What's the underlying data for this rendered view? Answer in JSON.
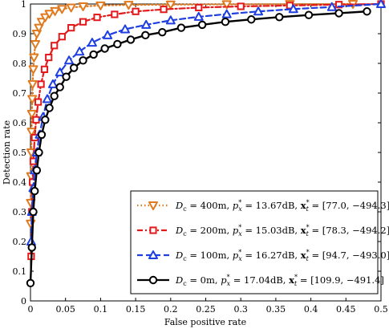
{
  "chart_data": {
    "type": "line",
    "title": "",
    "xlabel": "False positive rate",
    "ylabel": "Detection rate",
    "xlim": [
      0,
      0.5
    ],
    "ylim": [
      0,
      1
    ],
    "x_ticks": [
      "0",
      "0.05",
      "0.1",
      "0.15",
      "0.2",
      "0.25",
      "0.3",
      "0.35",
      "0.4",
      "0.45",
      "0.5"
    ],
    "y_ticks": [
      "0",
      "0.1",
      "0.2",
      "0.3",
      "0.4",
      "0.5",
      "0.6",
      "0.7",
      "0.8",
      "0.9",
      "1"
    ],
    "grid": false,
    "legend_position": "bottom-right",
    "series": [
      {
        "name": "D_c = 400m, p_x* = 13.67dB, x_t* = [77.0, -494.3]",
        "legend": {
          "pre": "D",
          "sub1": "c",
          "mid1": " = 400m, ",
          "p": "p",
          "psup": "*",
          "psub": "x",
          "mid2": " = 13.67dB, ",
          "x": "x",
          "xsup": "*",
          "xsub": "t",
          "post": " = [77.0, −494.3]"
        },
        "color": "#e07a1f",
        "line_style": "dotted",
        "marker": "triangle-down",
        "x": [
          0.0003,
          0.0005,
          0.0008,
          0.0012,
          0.0016,
          0.002,
          0.0025,
          0.003,
          0.004,
          0.005,
          0.007,
          0.009,
          0.012,
          0.016,
          0.021,
          0.027,
          0.035,
          0.045,
          0.058,
          0.075,
          0.1,
          0.14,
          0.2,
          0.28,
          0.37,
          0.46
        ],
        "y": [
          0.26,
          0.33,
          0.42,
          0.5,
          0.57,
          0.63,
          0.68,
          0.73,
          0.78,
          0.82,
          0.865,
          0.9,
          0.92,
          0.94,
          0.955,
          0.967,
          0.976,
          0.983,
          0.988,
          0.992,
          0.995,
          0.997,
          0.998,
          0.999,
          0.9995,
          1.0
        ]
      },
      {
        "name": "D_c = 200m, p_x* = 15.03dB, x_t* = [78.3, -494.2]",
        "legend": {
          "pre": "D",
          "sub1": "c",
          "mid1": " = 200m, ",
          "p": "p",
          "psup": "*",
          "psub": "x",
          "mid2": " = 15.03dB, ",
          "x": "x",
          "xsup": "*",
          "xsub": "t",
          "post": " = [78.3, −494.2]"
        },
        "color": "#e31a1c",
        "line_style": "dashdot",
        "marker": "square",
        "x": [
          0.001,
          0.002,
          0.003,
          0.004,
          0.006,
          0.008,
          0.011,
          0.015,
          0.02,
          0.026,
          0.034,
          0.045,
          0.058,
          0.075,
          0.095,
          0.12,
          0.15,
          0.19,
          0.24,
          0.3,
          0.37,
          0.44,
          0.5
        ],
        "y": [
          0.15,
          0.3,
          0.4,
          0.47,
          0.55,
          0.61,
          0.67,
          0.73,
          0.78,
          0.82,
          0.86,
          0.89,
          0.92,
          0.94,
          0.955,
          0.965,
          0.975,
          0.982,
          0.988,
          0.992,
          0.995,
          0.998,
          1.0
        ]
      },
      {
        "name": "D_c = 100m, p_x* = 16.27dB, x_t* = [94.7, -493.0]",
        "legend": {
          "pre": "D",
          "sub1": "c",
          "mid1": " = 100m, ",
          "p": "p",
          "psup": "*",
          "psub": "x",
          "mid2": " = 16.27dB, ",
          "x": "x",
          "xsup": "*",
          "xsub": "t",
          "post": " = [94.7, −493.0]"
        },
        "color": "#1f3fe0",
        "line_style": "dashed",
        "marker": "triangle-up",
        "x": [
          0.001,
          0.002,
          0.004,
          0.006,
          0.009,
          0.013,
          0.018,
          0.024,
          0.032,
          0.042,
          0.055,
          0.07,
          0.088,
          0.11,
          0.135,
          0.165,
          0.2,
          0.24,
          0.28,
          0.325,
          0.375,
          0.43,
          0.5
        ],
        "y": [
          0.2,
          0.3,
          0.38,
          0.44,
          0.5,
          0.56,
          0.62,
          0.68,
          0.73,
          0.77,
          0.81,
          0.84,
          0.87,
          0.895,
          0.915,
          0.93,
          0.945,
          0.957,
          0.966,
          0.975,
          0.983,
          0.99,
          1.0
        ]
      },
      {
        "name": "D_c = 0m, p_x* = 17.04dB, x_t* = [109.9, -491.4]",
        "legend": {
          "pre": "D",
          "sub1": "c",
          "mid1": " = 0m, ",
          "p": "p",
          "psup": "*",
          "psub": "x",
          "mid2": " = 17.04dB, ",
          "x": "x",
          "xsup": "*",
          "xsub": "t",
          "post": " = [109.9, −491.4]"
        },
        "color": "#000000",
        "line_style": "solid",
        "marker": "circle",
        "x": [
          0.0,
          0.002,
          0.004,
          0.006,
          0.009,
          0.012,
          0.016,
          0.021,
          0.027,
          0.034,
          0.042,
          0.051,
          0.062,
          0.075,
          0.09,
          0.106,
          0.124,
          0.143,
          0.164,
          0.188,
          0.215,
          0.245,
          0.278,
          0.315,
          0.355,
          0.397,
          0.44,
          0.48
        ],
        "y": [
          0.06,
          0.18,
          0.3,
          0.37,
          0.44,
          0.5,
          0.56,
          0.61,
          0.65,
          0.69,
          0.72,
          0.755,
          0.785,
          0.81,
          0.83,
          0.85,
          0.865,
          0.88,
          0.895,
          0.905,
          0.92,
          0.93,
          0.94,
          0.948,
          0.956,
          0.963,
          0.969,
          0.975
        ]
      }
    ]
  }
}
